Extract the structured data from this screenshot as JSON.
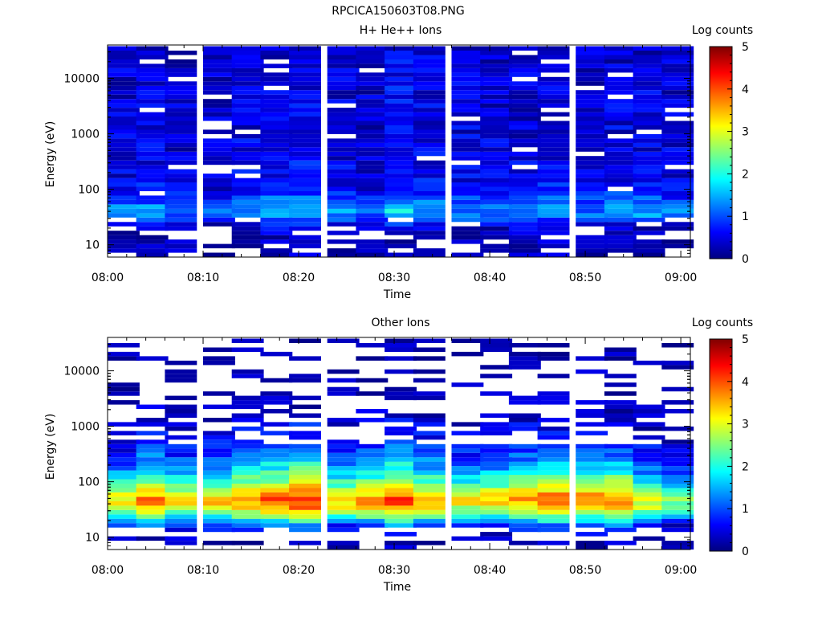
{
  "figure_title": "RPCICA150603T08.PNG",
  "colormap": [
    "#00007f",
    "#0000ff",
    "#007fff",
    "#00ffff",
    "#7fff7f",
    "#ffff00",
    "#ff7f00",
    "#ff0000",
    "#7f0000"
  ],
  "chart_data": [
    {
      "type": "heatmap",
      "title": "H+ He++ Ions",
      "xlabel": "Time",
      "ylabel": "Energy (eV)",
      "colorbar_label": "Log counts",
      "x_ticks": [
        "08:00",
        "08:10",
        "08:20",
        "08:30",
        "08:40",
        "08:50",
        "09:00"
      ],
      "xlim": [
        "08:00",
        "09:01"
      ],
      "y_scale": "log",
      "ylim": [
        6,
        40000
      ],
      "y_ticks": [
        "10",
        "100",
        "1000",
        "10000"
      ],
      "color_range": [
        0,
        5
      ],
      "colorbar_ticks": [
        "0",
        "1",
        "2",
        "3",
        "4",
        "5"
      ],
      "time_bins": [
        "08:00",
        "08:03",
        "08:06",
        "08:10",
        "08:13",
        "08:16",
        "08:19",
        "08:23",
        "08:26",
        "08:29",
        "08:32",
        "08:36",
        "08:39",
        "08:42",
        "08:45",
        "08:49",
        "08:52",
        "08:55",
        "08:58"
      ],
      "profile": [
        {
          "energy": 40000,
          "log_counts": 0.3
        },
        {
          "energy": 10000,
          "log_counts": 0.4
        },
        {
          "energy": 1000,
          "log_counts": 0.4
        },
        {
          "energy": 200,
          "log_counts": 0.45
        },
        {
          "energy": 90,
          "log_counts": 0.6
        },
        {
          "energy": 50,
          "log_counts": 1.1
        },
        {
          "energy": 35,
          "log_counts": 1.2
        },
        {
          "energy": 25,
          "log_counts": 0.5
        },
        {
          "energy": 15,
          "log_counts": 0.2
        },
        {
          "energy": 8,
          "log_counts": 0.2
        }
      ],
      "time_modulation": [
        0.1,
        0.2,
        0.0,
        -0.2,
        0.3,
        0.5,
        0.6,
        0.2,
        -0.1,
        0.8,
        0.3,
        0.2,
        0.1,
        0.1,
        0.4,
        0.0,
        0.3,
        0.2,
        0.0
      ]
    },
    {
      "type": "heatmap",
      "title": "Other Ions",
      "xlabel": "Time",
      "ylabel": "Energy (eV)",
      "colorbar_label": "Log counts",
      "x_ticks": [
        "08:00",
        "08:10",
        "08:20",
        "08:30",
        "08:40",
        "08:50",
        "09:00"
      ],
      "xlim": [
        "08:00",
        "09:01"
      ],
      "y_scale": "log",
      "ylim": [
        6,
        40000
      ],
      "y_ticks": [
        "10",
        "100",
        "1000",
        "10000"
      ],
      "color_range": [
        0,
        5
      ],
      "colorbar_ticks": [
        "0",
        "1",
        "2",
        "3",
        "4",
        "5"
      ],
      "time_bins": [
        "08:00",
        "08:03",
        "08:06",
        "08:10",
        "08:13",
        "08:16",
        "08:19",
        "08:23",
        "08:26",
        "08:29",
        "08:32",
        "08:36",
        "08:39",
        "08:42",
        "08:45",
        "08:49",
        "08:52",
        "08:55",
        "08:58"
      ],
      "profile": [
        {
          "energy": 30000,
          "log_counts": 0.1
        },
        {
          "energy": 3000,
          "log_counts": 0.2
        },
        {
          "energy": 800,
          "log_counts": 0.5
        },
        {
          "energy": 300,
          "log_counts": 1.0
        },
        {
          "energy": 150,
          "log_counts": 1.7
        },
        {
          "energy": 80,
          "log_counts": 2.6
        },
        {
          "energy": 50,
          "log_counts": 3.6
        },
        {
          "energy": 35,
          "log_counts": 3.2
        },
        {
          "energy": 25,
          "log_counts": 2.3
        },
        {
          "energy": 18,
          "log_counts": 1.2
        },
        {
          "energy": 12,
          "log_counts": 0.4
        },
        {
          "energy": 8,
          "log_counts": 0.2
        }
      ],
      "time_modulation": [
        -0.4,
        0.2,
        -0.3,
        -0.1,
        0.2,
        0.4,
        0.7,
        -0.2,
        0.1,
        0.5,
        0.0,
        -0.3,
        -0.2,
        0.1,
        0.3,
        0.2,
        0.3,
        -0.4,
        -0.8
      ]
    }
  ]
}
